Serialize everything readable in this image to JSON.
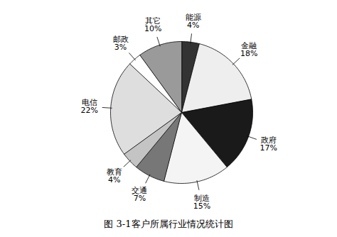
{
  "chart_data": {
    "type": "pie",
    "title": "图 3-1客户所属行业情况统计图",
    "categories": [
      "能源",
      "金融",
      "政府",
      "制造",
      "交通",
      "教育",
      "电信",
      "邮政",
      "其它"
    ],
    "values": [
      4,
      18,
      17,
      15,
      7,
      4,
      22,
      3,
      10
    ],
    "value_labels": [
      "4%",
      "18%",
      "17%",
      "15%",
      "7%",
      "4%",
      "22%",
      "3%",
      "10%"
    ],
    "colors": [
      "#333333",
      "#eeeeee",
      "#1a1a1a",
      "#f4f4f4",
      "#777777",
      "#c4c4c4",
      "#dedede",
      "#ffffff",
      "#9a9a9a"
    ],
    "data_labels": true
  }
}
